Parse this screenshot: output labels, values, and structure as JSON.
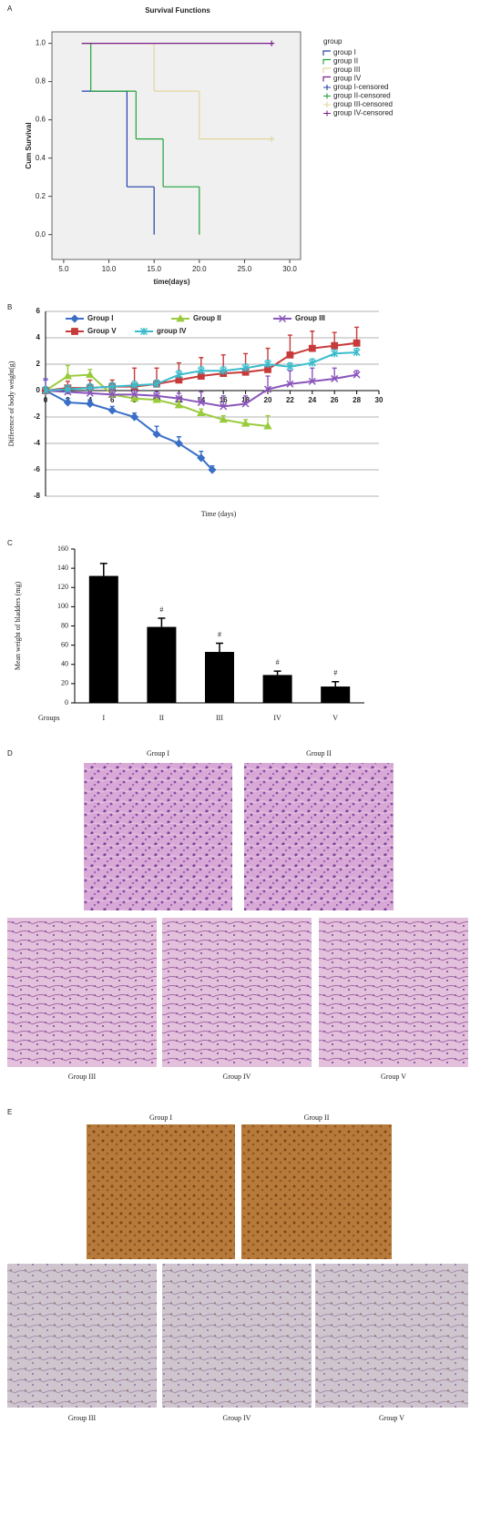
{
  "chart_data": [
    {
      "type": "step",
      "panel": "A",
      "title": "Survival Functions",
      "y_label": "Cum Survival",
      "x_label": "time(days)",
      "legend_title": "group",
      "xlim": [
        3.7,
        31.2
      ],
      "ylim": [
        -0.13,
        1.06
      ],
      "xticks": [
        {
          "value": 5,
          "label": "5.0"
        },
        {
          "value": 10,
          "label": "10.0"
        },
        {
          "value": 15,
          "label": "15.0"
        },
        {
          "value": 20,
          "label": "20.0"
        },
        {
          "value": 25,
          "label": "25.0"
        },
        {
          "value": 30,
          "label": "30.0"
        }
      ],
      "yticks": [
        {
          "value": 0,
          "label": "0.0"
        },
        0.2,
        0.4,
        0.6,
        0.8,
        {
          "value": 1,
          "label": "1.0"
        }
      ],
      "series": [
        {
          "name": "group I",
          "color": "#2040a8",
          "x": [
            7,
            12,
            15
          ],
          "values": [
            0.75,
            0.25,
            0
          ]
        },
        {
          "name": "group II",
          "color": "#1ea33a",
          "x": [
            7,
            8,
            13,
            16,
            20
          ],
          "values": [
            1,
            0.75,
            0.5,
            0.25,
            0
          ]
        },
        {
          "name": "group III",
          "color": "#e2d69c",
          "x": [
            7,
            15,
            20,
            28
          ],
          "values": [
            1,
            0.75,
            0.5,
            0.5
          ]
        },
        {
          "name": "group IV",
          "color": "#7a1f8a",
          "x": [
            7,
            28
          ],
          "values": [
            1,
            1
          ]
        }
      ],
      "censored_legend": [
        "group I-censored",
        "group II-censored",
        "group III-censored",
        "group IV-censored"
      ]
    },
    {
      "type": "line",
      "panel": "B",
      "y_label": "Difference of body weight(g)",
      "x_label": "Time (days)",
      "xlim": [
        0,
        30
      ],
      "ylim": [
        -8,
        6
      ],
      "grid": true,
      "xticks": [
        0,
        2,
        4,
        6,
        8,
        10,
        12,
        14,
        16,
        18,
        20,
        22,
        24,
        26,
        28,
        30
      ],
      "yticks": [
        -8,
        -6,
        -4,
        -2,
        0,
        2,
        4,
        6
      ],
      "series": [
        {
          "name": "Group I",
          "color": "#3a6fc8",
          "marker": "diamond",
          "x": [
            0,
            2,
            4,
            6,
            8,
            10,
            12,
            14,
            15
          ],
          "values": [
            0,
            -0.9,
            -1.0,
            -1.5,
            -2.0,
            -3.3,
            -4.0,
            -5.1,
            -6.0
          ],
          "errors": [
            0.8,
            0.3,
            0.3,
            0.3,
            0.3,
            0.6,
            0.5,
            0.5,
            0.3
          ]
        },
        {
          "name": "Group II",
          "color": "#9acb3c",
          "marker": "triangle",
          "x": [
            0,
            2,
            4,
            6,
            8,
            10,
            12,
            14,
            16,
            18,
            20
          ],
          "values": [
            0,
            1.1,
            1.2,
            -0.3,
            -0.6,
            -0.7,
            -1.1,
            -1.7,
            -2.2,
            -2.5,
            -2.7
          ],
          "errors": [
            0.3,
            0.8,
            0.4,
            0.3,
            0.3,
            0.3,
            0.3,
            0.3,
            0.3,
            0.3,
            0.8
          ]
        },
        {
          "name": "Group III",
          "color": "#8a55bb",
          "marker": "cross",
          "x": [
            0,
            2,
            4,
            6,
            8,
            10,
            12,
            14,
            16,
            18,
            20,
            22,
            24,
            26,
            28
          ],
          "values": [
            0,
            -0.1,
            -0.2,
            -0.3,
            -0.3,
            -0.4,
            -0.6,
            -0.9,
            -1.2,
            -1.0,
            0.1,
            0.5,
            0.7,
            0.9,
            1.2
          ],
          "errors": [
            0.9,
            0.3,
            0.3,
            0.3,
            0.3,
            0.3,
            0.4,
            0.8,
            0.8,
            0.6,
            1.0,
            1.0,
            1.0,
            0.8,
            0.3
          ]
        },
        {
          "name": "Group V",
          "color": "#c83a3a",
          "marker": "square",
          "x": [
            0,
            2,
            4,
            6,
            8,
            10,
            12,
            14,
            16,
            18,
            20,
            22,
            24,
            26,
            28
          ],
          "values": [
            0,
            0.2,
            0.2,
            0.3,
            0.3,
            0.5,
            0.8,
            1.1,
            1.3,
            1.4,
            1.6,
            2.7,
            3.2,
            3.4,
            3.6
          ],
          "errors": [
            0.3,
            0.5,
            0.6,
            0.5,
            1.4,
            1.2,
            1.3,
            1.4,
            1.4,
            1.4,
            1.6,
            1.5,
            1.3,
            1.0,
            1.2
          ]
        },
        {
          "name": "group IV",
          "color": "#3bbccc",
          "marker": "star",
          "x": [
            0,
            2,
            4,
            6,
            8,
            10,
            12,
            14,
            16,
            18,
            20,
            22,
            24,
            26,
            28
          ],
          "values": [
            0,
            0.1,
            0.2,
            0.3,
            0.4,
            0.5,
            1.2,
            1.5,
            1.5,
            1.7,
            2.0,
            1.8,
            2.1,
            2.8,
            2.9
          ],
          "errors": [
            0.3,
            0.3,
            0.3,
            0.3,
            0.3,
            0.3,
            0.3,
            0.3,
            0.3,
            0.3,
            0.3,
            0.3,
            0.3,
            0.3,
            0.3
          ]
        }
      ]
    },
    {
      "type": "bar",
      "panel": "C",
      "y_label": "Mean weight of bladders (mg)",
      "x_label": "Groups",
      "color": "#000000",
      "categories": [
        "I",
        "II",
        "III",
        "IV",
        "V"
      ],
      "values": [
        132,
        79,
        53,
        29,
        17
      ],
      "errors": [
        13,
        9,
        9,
        4,
        5
      ],
      "annotations": [
        {
          "category": "II",
          "text": "#"
        },
        {
          "category": "III",
          "text": "#"
        },
        {
          "category": "IV",
          "text": "#"
        },
        {
          "category": "V",
          "text": "#"
        }
      ],
      "ylim": [
        0,
        160
      ],
      "yticks": [
        0,
        20,
        40,
        60,
        80,
        100,
        120,
        140,
        160
      ]
    }
  ],
  "image_panels": [
    {
      "letter": "D",
      "images": [
        {
          "label": "Group I"
        },
        {
          "label": "Group II"
        },
        {
          "label": "Group III"
        },
        {
          "label": "Group IV"
        },
        {
          "label": "Group V"
        }
      ]
    },
    {
      "letter": "E",
      "images": [
        {
          "label": "Group I"
        },
        {
          "label": "Group II"
        },
        {
          "label": "Group III"
        },
        {
          "label": "Group IV"
        },
        {
          "label": "Group V"
        }
      ]
    }
  ]
}
